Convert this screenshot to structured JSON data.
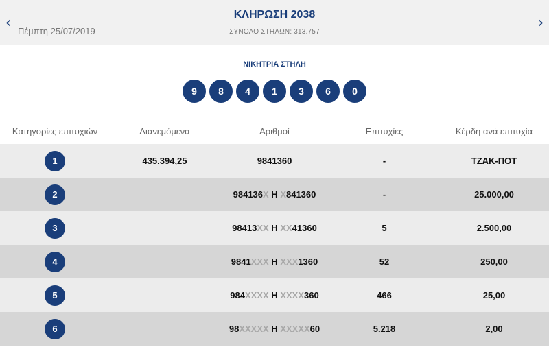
{
  "header": {
    "date": "Πέμπτη 25/07/2019",
    "title": "ΚΛΗΡΩΣΗ 2038",
    "total_columns": "ΣΥΝΟΛΟ ΣΤΗΛΩΝ: 313.757",
    "prev_icon": "chevron-left-icon",
    "next_icon": "chevron-right-icon"
  },
  "winning": {
    "label": "ΝΙΚΗΤΡΙΑ ΣΤΗΛΗ",
    "numbers": [
      "9",
      "8",
      "4",
      "1",
      "3",
      "6",
      "0"
    ]
  },
  "table": {
    "headers": [
      "Κατηγορίες επιτυχιών",
      "Διανεμόμενα",
      "Αριθμοί",
      "Επιτυχίες",
      "Κέρδη ανά επιτυχία"
    ],
    "rows": [
      {
        "category": "1",
        "distributed": "435.394,25",
        "numbers_a": "9841360",
        "x_a": "",
        "sep": "",
        "x_b": "",
        "numbers_b": "",
        "wins": "-",
        "prize": "ΤΖΑΚ-ΠΟΤ"
      },
      {
        "category": "2",
        "distributed": "",
        "numbers_a": "984136",
        "x_a": "X",
        "sep": " Η ",
        "x_b": "X",
        "numbers_b": "841360",
        "wins": "-",
        "prize": "25.000,00"
      },
      {
        "category": "3",
        "distributed": "",
        "numbers_a": "98413",
        "x_a": "XX",
        "sep": " Η ",
        "x_b": "XX",
        "numbers_b": "41360",
        "wins": "5",
        "prize": "2.500,00"
      },
      {
        "category": "4",
        "distributed": "",
        "numbers_a": "9841",
        "x_a": "XXX",
        "sep": " Η ",
        "x_b": "XXX",
        "numbers_b": "1360",
        "wins": "52",
        "prize": "250,00"
      },
      {
        "category": "5",
        "distributed": "",
        "numbers_a": "984",
        "x_a": "XXXX",
        "sep": " Η ",
        "x_b": "XXXX",
        "numbers_b": "360",
        "wins": "466",
        "prize": "25,00"
      },
      {
        "category": "6",
        "distributed": "",
        "numbers_a": "98",
        "x_a": "XXXXX",
        "sep": " Η ",
        "x_b": "XXXXX",
        "numbers_b": "60",
        "wins": "5.218",
        "prize": "2,00"
      }
    ]
  },
  "colors": {
    "accent": "#1a3e7a",
    "row_light": "#ececec",
    "row_dark": "#d6d6d6"
  }
}
